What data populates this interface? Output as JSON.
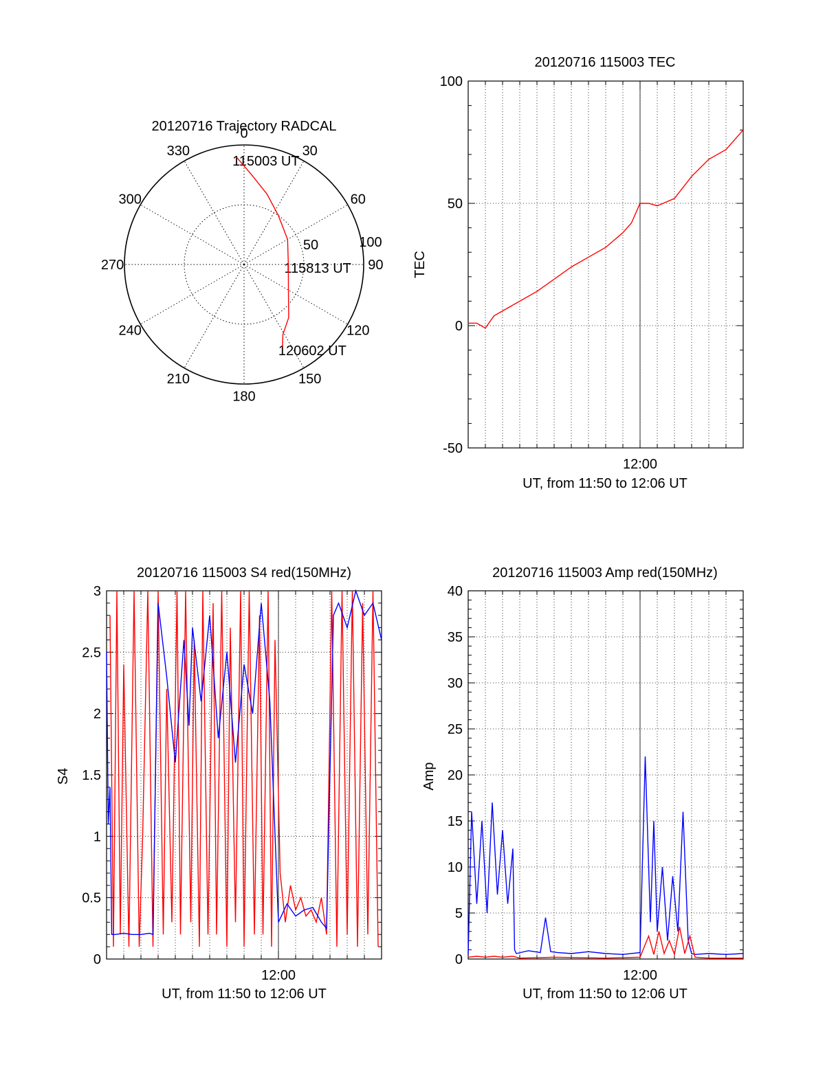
{
  "chart_data": [
    {
      "id": "trajectory",
      "type": "polar",
      "title": "20120716 Trajectory RADCAL",
      "azimuth_labels": [
        "0",
        "30",
        "60",
        "90",
        "120",
        "150",
        "180",
        "210",
        "240",
        "270",
        "300",
        "330"
      ],
      "radial_labels": [
        "50",
        "100"
      ],
      "radial_max": 100,
      "grid": true,
      "series": [
        {
          "color": "#ff0000",
          "points": [
            {
              "az": 356,
              "r": 90
            },
            {
              "az": 5,
              "r": 75
            },
            {
              "az": 18,
              "r": 62
            },
            {
              "az": 35,
              "r": 50
            },
            {
              "az": 60,
              "r": 42
            },
            {
              "az": 90,
              "r": 37
            },
            {
              "az": 118,
              "r": 42
            },
            {
              "az": 140,
              "r": 58
            },
            {
              "az": 151,
              "r": 67
            },
            {
              "az": 155,
              "r": 76
            }
          ]
        }
      ],
      "annotations": [
        {
          "text": "115003 UT",
          "az": 356,
          "r": 90
        },
        {
          "text": "115813 UT",
          "az": 90,
          "r": 37
        },
        {
          "text": "120602 UT",
          "az": 155,
          "r": 76
        }
      ]
    },
    {
      "id": "tec",
      "type": "line",
      "title": "20120716 115003 TEC",
      "xlabel": "UT, from 11:50 to 12:06 UT",
      "ylabel": "TEC",
      "xlim": [
        0,
        16.0
      ],
      "ylim": [
        -50,
        100
      ],
      "x_ticks": [
        {
          "value": 10,
          "label": "12:00"
        }
      ],
      "y_ticks": [
        -50,
        0,
        50,
        100
      ],
      "grid": true,
      "series": [
        {
          "color": "#ff0000",
          "x": [
            0,
            0.5,
            1.0,
            1.5,
            2.0,
            3.0,
            4.0,
            5.0,
            6.0,
            7.0,
            8.0,
            9.0,
            9.5,
            10.0,
            10.5,
            11.0,
            12.0,
            13.0,
            14.0,
            15.0,
            16.0
          ],
          "y": [
            1,
            1,
            -1,
            4,
            6,
            10,
            14,
            19,
            24,
            28,
            32,
            38,
            42,
            50,
            50,
            49,
            52,
            61,
            68,
            72,
            80
          ]
        }
      ]
    },
    {
      "id": "s4",
      "type": "line",
      "title": "20120716 115003 S4 red(150MHz)",
      "xlabel": "UT, from 11:50 to 12:06 UT",
      "ylabel": "S4",
      "xlim": [
        0,
        16.0
      ],
      "ylim": [
        0,
        3
      ],
      "x_ticks": [
        {
          "value": 10,
          "label": "12:00"
        }
      ],
      "y_ticks": [
        0,
        0.5,
        1,
        1.5,
        2,
        2.5,
        3
      ],
      "grid": true,
      "series": [
        {
          "color": "#ff0000",
          "x": [
            0.2,
            0.4,
            0.6,
            0.8,
            1.0,
            1.3,
            1.6,
            1.9,
            2.1,
            2.4,
            2.7,
            3.0,
            3.3,
            3.5,
            3.8,
            4.1,
            4.3,
            4.6,
            4.9,
            5.1,
            5.4,
            5.6,
            5.9,
            6.2,
            6.4,
            6.7,
            7.0,
            7.2,
            7.5,
            7.8,
            8.0,
            8.3,
            8.6,
            8.9,
            9.1,
            9.4,
            9.6,
            9.8,
            10.1,
            10.4,
            10.7,
            11.0,
            11.3,
            11.6,
            11.9,
            12.2,
            12.5,
            12.8,
            13.1,
            13.4,
            13.7,
            14.0,
            14.3,
            14.6,
            14.9,
            15.2,
            15.5,
            15.8
          ],
          "y": [
            2.8,
            0.1,
            3.0,
            0.2,
            2.4,
            0.1,
            3.0,
            0.1,
            1.0,
            3.0,
            0.1,
            3.0,
            0.2,
            2.2,
            0.3,
            3.0,
            0.2,
            3.0,
            0.3,
            2.6,
            0.1,
            3.0,
            0.2,
            2.9,
            0.2,
            3.0,
            0.1,
            2.7,
            0.3,
            3.0,
            0.1,
            3.0,
            0.2,
            2.8,
            0.2,
            3.0,
            0.1,
            2.6,
            0.7,
            0.3,
            0.6,
            0.4,
            0.5,
            0.35,
            0.4,
            0.3,
            0.5,
            0.2,
            3.0,
            0.1,
            3.0,
            0.2,
            3.0,
            0.1,
            2.9,
            0.2,
            3.0,
            0.1
          ]
        },
        {
          "color": "#0000ff",
          "x": [
            0,
            0.1,
            0.2,
            0.3,
            0.5,
            1.0,
            1.5,
            2.0,
            2.5,
            2.7,
            3.0,
            3.5,
            4.0,
            4.5,
            4.8,
            5.0,
            5.5,
            6.0,
            6.5,
            7.0,
            7.5,
            8.0,
            8.5,
            9.0,
            9.5,
            10.0,
            10.5,
            11.0,
            11.5,
            12.0,
            12.5,
            12.8,
            13.2,
            13.5,
            14.0,
            14.5,
            15.0,
            15.5,
            16.0
          ],
          "y": [
            2.5,
            1.1,
            1.4,
            0.2,
            0.2,
            0.21,
            0.2,
            0.2,
            0.21,
            0.2,
            2.9,
            2.3,
            1.6,
            2.6,
            1.9,
            2.7,
            2.1,
            2.8,
            1.8,
            2.5,
            1.6,
            2.4,
            2.0,
            2.9,
            2.1,
            0.3,
            0.45,
            0.35,
            0.4,
            0.42,
            0.3,
            0.25,
            2.8,
            2.9,
            2.7,
            3.0,
            2.8,
            2.9,
            2.6
          ]
        }
      ]
    },
    {
      "id": "amp",
      "type": "line",
      "title": "20120716 115003 Amp red(150MHz)",
      "xlabel": "UT, from 11:50 to 12:06 UT",
      "ylabel": "Amp",
      "xlim": [
        0,
        16.0
      ],
      "ylim": [
        0,
        40
      ],
      "x_ticks": [
        {
          "value": 10,
          "label": "12:00"
        }
      ],
      "y_ticks": [
        0,
        5,
        10,
        15,
        20,
        25,
        30,
        35,
        40
      ],
      "grid": true,
      "series": [
        {
          "color": "#0000ff",
          "x": [
            0,
            0.2,
            0.5,
            0.8,
            1.1,
            1.4,
            1.7,
            2.0,
            2.3,
            2.6,
            2.7,
            2.8,
            3.5,
            4.2,
            4.5,
            4.8,
            5.2,
            6.0,
            7.0,
            8.0,
            9.0,
            10.0,
            10.3,
            10.6,
            10.8,
            11.0,
            11.3,
            11.6,
            11.9,
            12.2,
            12.5,
            12.8,
            13.0,
            13.2,
            14.0,
            15.0,
            16.0
          ],
          "y": [
            0.5,
            16,
            6,
            15,
            5,
            17,
            7,
            14,
            6,
            12,
            1,
            0.6,
            0.9,
            0.7,
            4.5,
            0.8,
            0.7,
            0.6,
            0.8,
            0.6,
            0.5,
            0.7,
            22,
            4,
            15,
            3,
            10,
            2,
            9,
            3,
            16,
            2,
            0.6,
            0.5,
            0.6,
            0.5,
            0.6
          ]
        },
        {
          "color": "#ff0000",
          "x": [
            0,
            0.5,
            1.0,
            1.5,
            2.0,
            2.6,
            3.0,
            5.0,
            8.0,
            10.0,
            10.5,
            10.8,
            11.1,
            11.4,
            11.7,
            12.0,
            12.3,
            12.6,
            12.9,
            13.2,
            14.0,
            16.0
          ],
          "y": [
            0.2,
            0.3,
            0.2,
            0.3,
            0.2,
            0.3,
            0.1,
            0.2,
            0.1,
            0.2,
            2.5,
            0.5,
            3.0,
            0.6,
            2.0,
            0.5,
            3.5,
            0.6,
            2.5,
            0.2,
            0.1,
            0.1
          ]
        }
      ]
    }
  ]
}
